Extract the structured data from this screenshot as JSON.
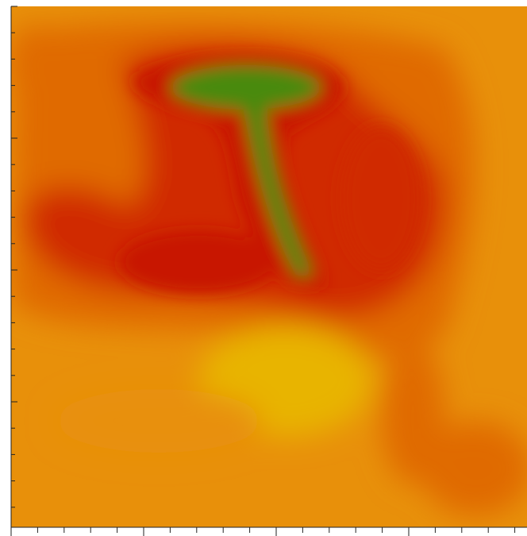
{
  "chart_data": {
    "type": "contour",
    "colors": [
      "#e8900a",
      "#e06a00",
      "#d02a00",
      "#c81400",
      "#4a8a10",
      "#e8b400"
    ]
  }
}
